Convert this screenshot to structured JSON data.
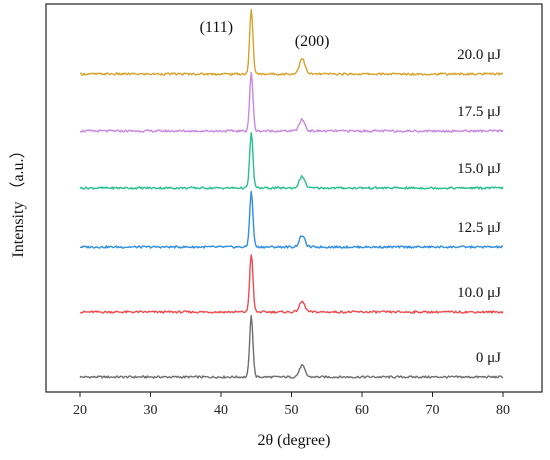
{
  "chart_data": {
    "type": "line",
    "xlabel": "2θ (degree)",
    "ylabel": "Intensity （a.u.）",
    "xlim": [
      20,
      80
    ],
    "xticks": [
      "20",
      "30",
      "40",
      "50",
      "60",
      "70",
      "80"
    ],
    "yticks_shown": false,
    "grid": false,
    "legend": "inline labels at right of each trace",
    "annotations": [
      {
        "text": "(111)",
        "x": 44.3
      },
      {
        "text": "(200)",
        "x": 51.5
      }
    ],
    "series": [
      {
        "name": "0 μJ",
        "color": "#6e6e6e",
        "offset": 0,
        "peak_111": 1.0,
        "peak_200": 0.19
      },
      {
        "name": "10.0 μJ",
        "color": "#ee4b50",
        "offset": 1,
        "peak_111": 0.95,
        "peak_200": 0.17
      },
      {
        "name": "12.5 μJ",
        "color": "#2f8ee0",
        "offset": 2,
        "peak_111": 0.9,
        "peak_200": 0.19
      },
      {
        "name": "15.0 μJ",
        "color": "#27c08e",
        "offset": 3,
        "peak_111": 0.9,
        "peak_200": 0.19
      },
      {
        "name": "17.5 μJ",
        "color": "#c887e0",
        "offset": 4,
        "peak_111": 0.95,
        "peak_200": 0.19
      },
      {
        "name": "20.0 μJ",
        "color": "#d7a22b",
        "offset": 5,
        "peak_111": 1.05,
        "peak_200": 0.26
      }
    ]
  }
}
